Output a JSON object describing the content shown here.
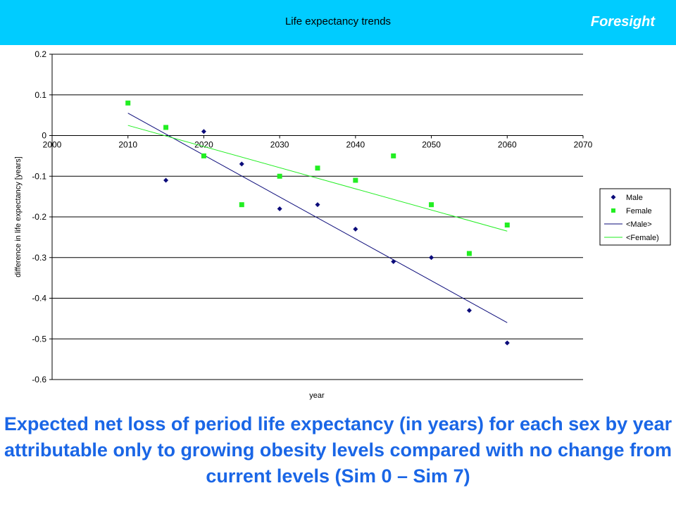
{
  "header": {
    "brand": "Foresight"
  },
  "colors": {
    "banner": "#00ccff",
    "male": "#0b0b7a",
    "female": "#22ee22",
    "caption": "#1a66e6"
  },
  "caption": "Expected net loss of period life expectancy (in years) for each sex by year attributable only to growing obesity levels compared with no change from current levels (Sim 0 – Sim 7)",
  "chart_data": {
    "type": "scatter",
    "title": "Life expectancy trends",
    "xlabel": "year",
    "ylabel": "difference in life expectancy [years]",
    "xlim": [
      2000,
      2070
    ],
    "ylim": [
      -0.6,
      0.2
    ],
    "xticks": [
      2000,
      2010,
      2020,
      2030,
      2040,
      2050,
      2060,
      2070
    ],
    "yticks": [
      0.2,
      0.1,
      0,
      -0.1,
      -0.2,
      -0.3,
      -0.4,
      -0.5,
      -0.6
    ],
    "xtick_labels": [
      "2000",
      "2010",
      "2020",
      "2030",
      "2040",
      "2050",
      "2060",
      "2070"
    ],
    "ytick_labels": [
      "0.2",
      "0.1",
      "0",
      "-0.1",
      "-0.2",
      "-0.3",
      "-0.4",
      "-0.5",
      "-0.6"
    ],
    "grid": "horizontal",
    "legend_position": "right",
    "series": [
      {
        "name": "Male",
        "marker": "diamond",
        "color": "#0b0b7a",
        "x": [
          2015,
          2020,
          2025,
          2030,
          2035,
          2040,
          2045,
          2050,
          2055,
          2060
        ],
        "y": [
          -0.11,
          0.01,
          -0.07,
          -0.18,
          -0.17,
          -0.23,
          -0.31,
          -0.3,
          -0.43,
          -0.51
        ]
      },
      {
        "name": "Female",
        "marker": "square",
        "color": "#22ee22",
        "x": [
          2010,
          2015,
          2020,
          2025,
          2030,
          2035,
          2040,
          2045,
          2050,
          2055,
          2060
        ],
        "y": [
          0.08,
          0.02,
          -0.05,
          -0.17,
          -0.1,
          -0.08,
          -0.11,
          -0.05,
          -0.17,
          -0.29,
          -0.22
        ]
      }
    ],
    "trendlines": [
      {
        "name": "<Male>",
        "color": "#0b0b7a",
        "x": [
          2010,
          2060
        ],
        "y": [
          0.055,
          -0.46
        ]
      },
      {
        "name": "<Female)",
        "color": "#22ee22",
        "x": [
          2010,
          2060
        ],
        "y": [
          0.025,
          -0.235
        ]
      }
    ]
  }
}
